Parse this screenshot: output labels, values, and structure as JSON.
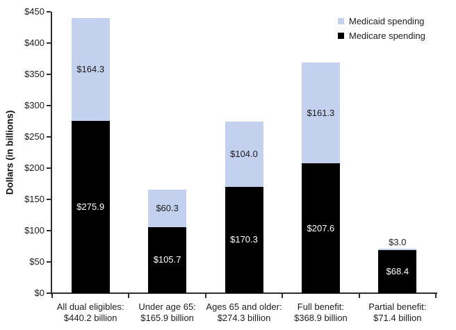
{
  "chart_data": {
    "type": "bar",
    "stacked": true,
    "title": "",
    "ylabel": "Dollars (in billions)",
    "ylim": [
      0,
      450
    ],
    "ytick_step": 50,
    "ytick_labels": [
      "$0",
      "$50",
      "$100",
      "$150",
      "$200",
      "$250",
      "$300",
      "$350",
      "$400",
      "$450"
    ],
    "grid": false,
    "legend_position": "top-right",
    "categories": [
      "All dual eligibles:",
      "Under age 65:",
      "Ages 65 and older:",
      "Full benefit:",
      "Partial benefit:"
    ],
    "category_totals": [
      "$440.2 billion",
      "$165.9 billion",
      "$274.3 billion",
      "$368.9 billion",
      "$71.4 billion"
    ],
    "series": [
      {
        "name": "Medicaid spending",
        "color": "#c3d1ee",
        "label_color": "#1a1a1a",
        "values": [
          164.3,
          60.3,
          104.0,
          161.3,
          3.0
        ],
        "value_labels": [
          "$164.3",
          "$60.3",
          "$104.0",
          "$161.3",
          "$3.0"
        ]
      },
      {
        "name": "Medicare spending",
        "color": "#000000",
        "label_color": "#ffffff",
        "values": [
          275.9,
          105.7,
          170.3,
          207.6,
          68.4
        ],
        "value_labels": [
          "$275.9",
          "$105.7",
          "$170.3",
          "$207.6",
          "$68.4"
        ]
      }
    ]
  },
  "colors": {
    "axis": "#2e2e2e",
    "text": "#1c1c1c",
    "background": "#ffffff"
  }
}
